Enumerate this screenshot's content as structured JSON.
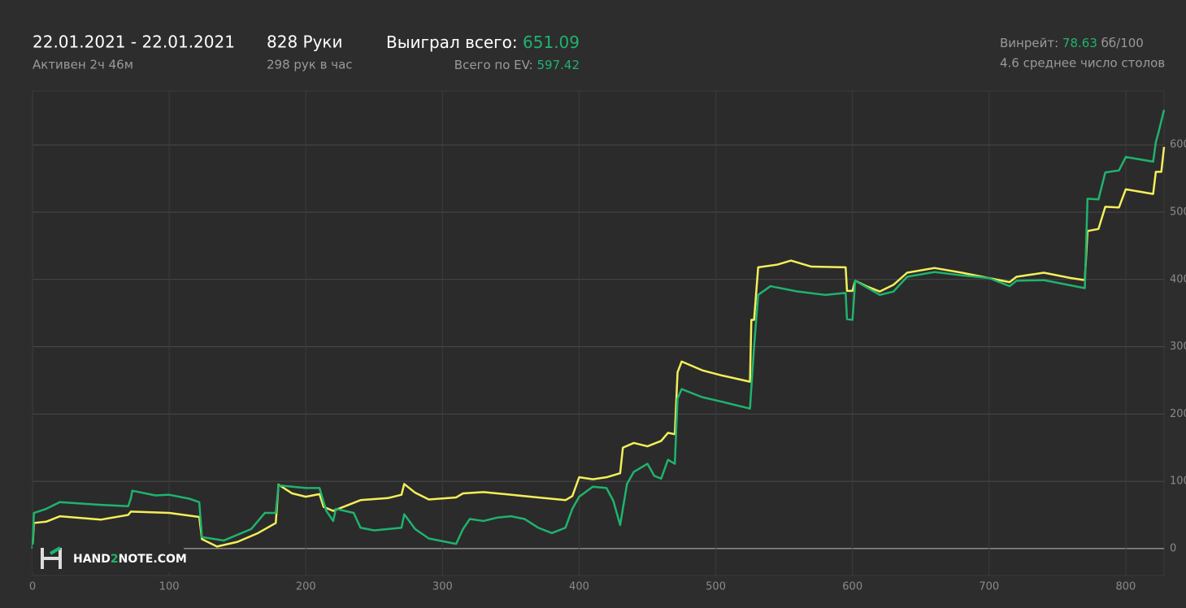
{
  "header": {
    "date_range": "22.01.2021 - 22.01.2021",
    "active": "Активен 2ч 46м",
    "hands": "828 Руки",
    "hands_per_hour": "298 рук в час",
    "won_label": "Выиграл всего:",
    "won_value": "651.09",
    "ev_label": "Всего по EV:",
    "ev_value": "597.42",
    "winrate_label": "Винрейт:",
    "winrate_value": "78.63",
    "winrate_unit": "бб/100",
    "avg_tables": "4.6 среднее число столов",
    "logo": [
      "HAND",
      "2",
      "NOTE.COM"
    ]
  },
  "chart_data": {
    "type": "line",
    "grid": true,
    "xlim": [
      0,
      828
    ],
    "ylim": [
      -40,
      680
    ],
    "xticks": [
      0,
      100,
      200,
      300,
      400,
      500,
      600,
      700,
      800
    ],
    "yticks": [
      0,
      100,
      200,
      300,
      400,
      500,
      600
    ],
    "series": [
      {
        "color": "#1fb36e",
        "x": [
          0,
          1,
          10,
          20,
          50,
          70,
          72,
          73,
          90,
          100,
          115,
          122,
          124,
          140,
          160,
          170,
          178,
          180,
          190,
          200,
          210,
          215,
          220,
          222,
          235,
          240,
          250,
          270,
          272,
          280,
          290,
          310,
          315,
          320,
          330,
          340,
          350,
          360,
          370,
          380,
          390,
          395,
          400,
          410,
          420,
          425,
          430,
          435,
          440,
          450,
          455,
          460,
          465,
          470,
          472,
          475,
          490,
          505,
          525,
          528,
          531,
          540,
          560,
          580,
          595,
          596,
          600,
          602,
          620,
          630,
          640,
          660,
          680,
          700,
          715,
          720,
          740,
          770,
          772,
          780,
          785,
          795,
          800,
          820,
          822,
          824,
          828
        ],
        "values": [
          0,
          53,
          59,
          69,
          65,
          63,
          75,
          86,
          79,
          80,
          74,
          69,
          17,
          12,
          29,
          53,
          53,
          94,
          92,
          90,
          90,
          56,
          41,
          59,
          53,
          31,
          27,
          31,
          51,
          29,
          15,
          7,
          29,
          44,
          41,
          46,
          48,
          44,
          31,
          23,
          31,
          59,
          77,
          92,
          90,
          71,
          35,
          96,
          114,
          126,
          108,
          104,
          132,
          126,
          223,
          237,
          225,
          218,
          208,
          300,
          377,
          390,
          382,
          377,
          380,
          341,
          340,
          398,
          377,
          382,
          404,
          411,
          406,
          402,
          390,
          398,
          399,
          387,
          520,
          519,
          559,
          562,
          582,
          575,
          604,
          619,
          652
        ]
      },
      {
        "color": "#f3ef5a",
        "x": [
          0,
          1,
          10,
          20,
          50,
          70,
          72,
          100,
          122,
          124,
          135,
          150,
          165,
          178,
          180,
          190,
          200,
          210,
          213,
          220,
          230,
          240,
          260,
          270,
          272,
          280,
          290,
          310,
          315,
          330,
          350,
          370,
          390,
          395,
          400,
          410,
          420,
          430,
          432,
          440,
          450,
          460,
          465,
          470,
          472,
          475,
          490,
          505,
          525,
          526,
          528,
          531,
          545,
          555,
          570,
          595,
          596,
          600,
          602,
          610,
          620,
          630,
          640,
          660,
          680,
          700,
          715,
          720,
          740,
          760,
          770,
          772,
          780,
          785,
          795,
          800,
          820,
          822,
          826,
          828
        ],
        "values": [
          0,
          38,
          40,
          48,
          43,
          50,
          55,
          53,
          47,
          14,
          3,
          10,
          23,
          38,
          95,
          82,
          77,
          81,
          62,
          56,
          64,
          72,
          75,
          80,
          96,
          83,
          73,
          76,
          82,
          84,
          80,
          76,
          72,
          78,
          106,
          103,
          106,
          112,
          150,
          157,
          152,
          160,
          172,
          170,
          262,
          278,
          265,
          257,
          248,
          340,
          340,
          418,
          422,
          428,
          419,
          418,
          383,
          383,
          398,
          390,
          382,
          392,
          410,
          417,
          410,
          402,
          396,
          404,
          410,
          402,
          399,
          472,
          475,
          508,
          507,
          534,
          527,
          560,
          560,
          597
        ]
      }
    ]
  }
}
